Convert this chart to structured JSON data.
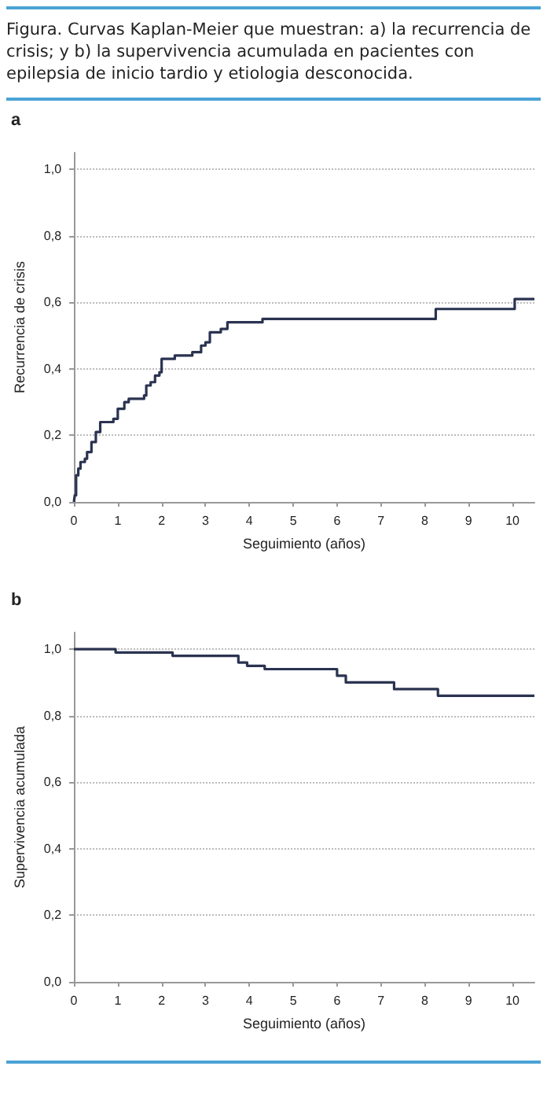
{
  "chart_data": [
    {
      "type": "step",
      "title": "a",
      "annotations": [
        "Figura. Curvas Kaplan-Meier que muestran: a) la recurrencia de crisis; y b) la supervivencia acumulada en pacientes con epilepsia de inicio tardio y etiologia desconocida."
      ],
      "xlabel": "Seguimiento (años)",
      "ylabel": "Recurrencia de crisis",
      "x": [
        0,
        0.02,
        0.05,
        0.1,
        0.15,
        0.25,
        0.3,
        0.4,
        0.5,
        0.6,
        0.9,
        1.0,
        1.15,
        1.25,
        1.6,
        1.65,
        1.75,
        1.85,
        1.95,
        2.0,
        2.3,
        2.7,
        2.9,
        3.0,
        3.1,
        3.35,
        3.5,
        4.3,
        8.25,
        10.05,
        10.5
      ],
      "series": [
        {
          "color": "#2a3350",
          "values": [
            0,
            0.02,
            0.08,
            0.1,
            0.12,
            0.13,
            0.15,
            0.18,
            0.21,
            0.24,
            0.25,
            0.28,
            0.3,
            0.31,
            0.32,
            0.35,
            0.36,
            0.38,
            0.39,
            0.43,
            0.44,
            0.45,
            0.47,
            0.48,
            0.51,
            0.52,
            0.54,
            0.55,
            0.58,
            0.61,
            0.61
          ]
        }
      ],
      "xlim": [
        0,
        10.5
      ],
      "ylim": [
        0,
        1.05
      ],
      "xticks": [
        0,
        1,
        2,
        3,
        4,
        5,
        6,
        7,
        8,
        9,
        10
      ],
      "yticks": [
        {
          "value": 0,
          "label": "0,0"
        },
        {
          "value": 0.2,
          "label": "0,2"
        },
        {
          "value": 0.4,
          "label": "0,4"
        },
        {
          "value": 0.6,
          "label": "0,6"
        },
        {
          "value": 0.8,
          "label": "0,8"
        },
        {
          "value": 1,
          "label": "1,0"
        }
      ],
      "grid": "y",
      "marker": "none",
      "line_style": "solid"
    },
    {
      "type": "step",
      "title": "b",
      "xlabel": "Seguimiento (años)",
      "ylabel": "Supervivencia acumulada",
      "x": [
        0,
        0.95,
        2.25,
        3.75,
        3.95,
        4.35,
        6.0,
        6.2,
        7.3,
        8.3,
        10.5
      ],
      "series": [
        {
          "color": "#2a3350",
          "values": [
            1,
            0.99,
            0.98,
            0.96,
            0.95,
            0.94,
            0.92,
            0.9,
            0.88,
            0.86,
            0.86
          ]
        }
      ],
      "xlim": [
        0,
        10.5
      ],
      "ylim": [
        0,
        1.05
      ],
      "xticks": [
        0,
        1,
        2,
        3,
        4,
        5,
        6,
        7,
        8,
        9,
        10
      ],
      "yticks": [
        {
          "value": 0,
          "label": "0,0"
        },
        {
          "value": 0.2,
          "label": "0,2"
        },
        {
          "value": 0.4,
          "label": "0,4"
        },
        {
          "value": 0.6,
          "label": "0,6"
        },
        {
          "value": 0.8,
          "label": "0,8"
        },
        {
          "value": 1,
          "label": "1,0"
        }
      ],
      "grid": "y",
      "marker": "none",
      "line_style": "solid"
    }
  ]
}
